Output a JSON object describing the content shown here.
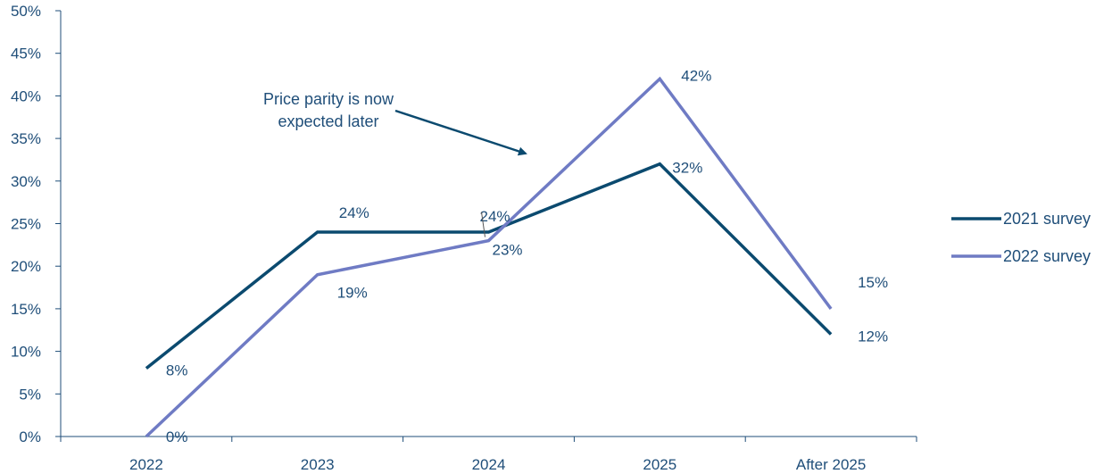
{
  "chart_data": {
    "type": "line",
    "categories": [
      "2022",
      "2023",
      "2024",
      "2025",
      "After 2025"
    ],
    "series": [
      {
        "name": "2021 survey",
        "values": [
          8,
          24,
          24,
          32,
          12
        ],
        "color": "#0b4a6f",
        "labels": [
          "8%",
          "24%",
          "24%",
          "32%",
          "12%"
        ]
      },
      {
        "name": "2022 survey",
        "values": [
          0,
          19,
          23,
          42,
          15
        ],
        "color": "#6f7bc4",
        "labels": [
          "0%",
          "19%",
          "23%",
          "42%",
          "15%"
        ]
      }
    ],
    "y_ticks": [
      "0%",
      "5%",
      "10%",
      "15%",
      "20%",
      "25%",
      "30%",
      "35%",
      "40%",
      "45%",
      "50%"
    ],
    "ylim": [
      0,
      50
    ],
    "grid": false,
    "legend": "right",
    "annotation": {
      "lines": [
        "Price parity is now",
        "expected later"
      ]
    },
    "axis_color": "#1f4e79"
  }
}
